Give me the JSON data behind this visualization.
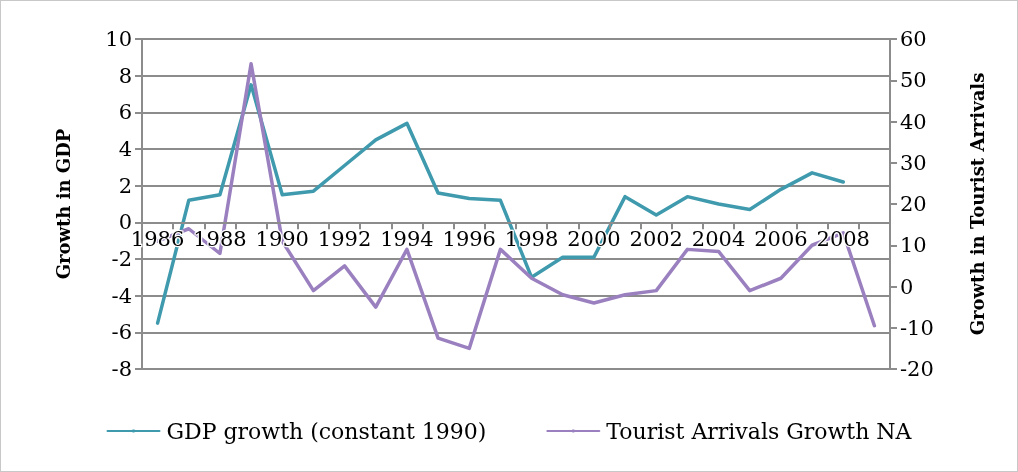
{
  "chart_data": {
    "type": "line",
    "ylabel": "Growth in GDP",
    "y2label": "Growth in Tourist Arrivals",
    "categories": [
      "1986",
      null,
      "1988",
      null,
      "1990",
      null,
      "1992",
      null,
      "1994",
      null,
      "1996",
      null,
      "1998",
      null,
      "2000",
      null,
      "2002",
      null,
      "2004",
      null,
      "2006",
      null,
      "2008",
      null
    ],
    "series": [
      {
        "name": "GDP growth (constant 1990)",
        "color": "#3f9aae",
        "values": [
          -5.5,
          1.2,
          1.5,
          7.5,
          1.5,
          1.7,
          3.1,
          4.5,
          5.4,
          1.6,
          1.3,
          1.2,
          -3.0,
          -1.9,
          -1.9,
          1.4,
          0.4,
          1.4,
          1.0,
          0.7,
          1.8,
          2.7,
          2.2,
          null
        ]
      },
      {
        "name": "Tourist Arrivals Growth NA",
        "color": "#9b80c0",
        "axis": "y2",
        "values": [
          11,
          14,
          8,
          54,
          11,
          -1,
          5,
          -5,
          9,
          -12.5,
          -15,
          9,
          2,
          -2,
          -4,
          -2,
          -1,
          9,
          8.5,
          -1,
          2,
          10,
          13,
          -9.5
        ]
      }
    ],
    "ylim": [
      -8,
      10
    ],
    "yticks": [
      -8,
      -6,
      -4,
      -2,
      0,
      2,
      4,
      6,
      8,
      10
    ],
    "y2lim": [
      -20,
      60
    ],
    "y2ticks": [
      -20,
      -10,
      0,
      10,
      20,
      30,
      40,
      50,
      60
    ],
    "grid": "y",
    "legend": "bottom",
    "marker": "none"
  }
}
